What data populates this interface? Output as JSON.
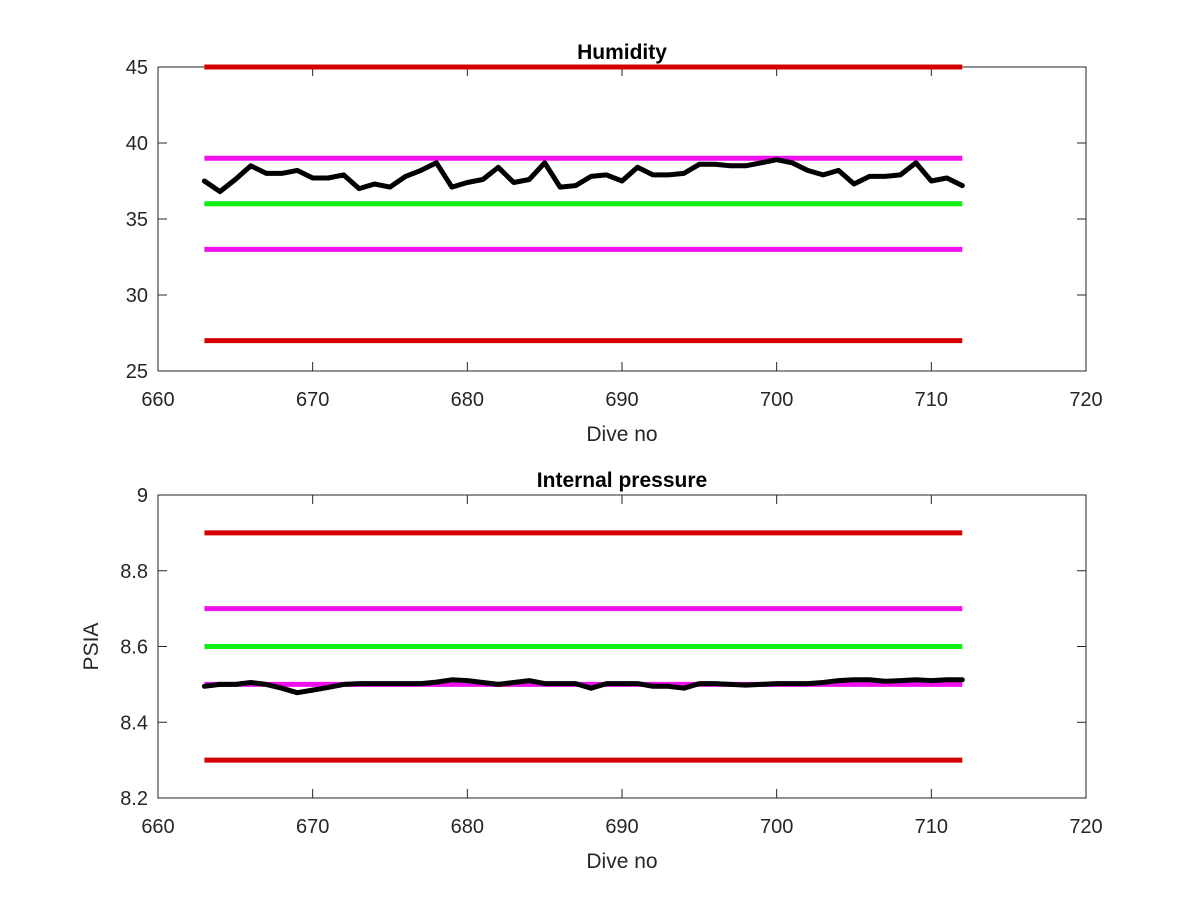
{
  "chart_data": [
    {
      "type": "line",
      "title": "Humidity",
      "xlabel": "Dive no",
      "ylabel": "",
      "xlim": [
        660,
        720
      ],
      "ylim": [
        25,
        45
      ],
      "xticks": [
        660,
        670,
        680,
        690,
        700,
        710,
        720
      ],
      "yticks": [
        25,
        30,
        35,
        40,
        45
      ],
      "xtick_labels": [
        "660",
        "670",
        "680",
        "690",
        "700",
        "710",
        "720"
      ],
      "ytick_labels": [
        "25",
        "30",
        "35",
        "40",
        "45"
      ],
      "grid": false,
      "legend": "none",
      "reference_lines": [
        {
          "y": 45,
          "x": [
            663,
            712
          ],
          "color": "#d40000"
        },
        {
          "y": 39,
          "x": [
            663,
            712
          ],
          "color": "#ee11ee"
        },
        {
          "y": 36,
          "x": [
            663,
            712
          ],
          "color": "#11ee11"
        },
        {
          "y": 33,
          "x": [
            663,
            712
          ],
          "color": "#ee11ee"
        },
        {
          "y": 27,
          "x": [
            663,
            712
          ],
          "color": "#d40000"
        }
      ],
      "series": [
        {
          "color": "#000000",
          "x": [
            663,
            664,
            665,
            666,
            667,
            668,
            669,
            670,
            671,
            672,
            673,
            674,
            675,
            676,
            677,
            678,
            679,
            680,
            681,
            682,
            683,
            684,
            685,
            686,
            687,
            688,
            689,
            690,
            691,
            692,
            693,
            694,
            695,
            696,
            697,
            698,
            699,
            700,
            701,
            702,
            703,
            704,
            705,
            706,
            707,
            708,
            709,
            710,
            711,
            712
          ],
          "y": [
            37.5,
            36.8,
            37.6,
            38.5,
            38.0,
            38.0,
            38.2,
            37.7,
            37.7,
            37.9,
            37.0,
            37.3,
            37.1,
            37.8,
            38.2,
            38.7,
            37.1,
            37.4,
            37.6,
            38.4,
            37.4,
            37.6,
            38.7,
            37.1,
            37.2,
            37.8,
            37.9,
            37.5,
            38.4,
            37.9,
            37.9,
            38.0,
            38.6,
            38.6,
            38.5,
            38.5,
            38.7,
            38.9,
            38.7,
            38.2,
            37.9,
            38.2,
            37.3,
            37.8,
            37.8,
            37.9,
            38.7,
            37.5,
            37.7,
            37.2
          ]
        }
      ]
    },
    {
      "type": "line",
      "title": "Internal pressure",
      "xlabel": "Dive no",
      "ylabel": "PSIA",
      "xlim": [
        660,
        720
      ],
      "ylim": [
        8.2,
        9
      ],
      "xticks": [
        660,
        670,
        680,
        690,
        700,
        710,
        720
      ],
      "yticks": [
        8.2,
        8.4,
        8.6,
        8.8,
        9
      ],
      "xtick_labels": [
        "660",
        "670",
        "680",
        "690",
        "700",
        "710",
        "720"
      ],
      "ytick_labels": [
        "8.2",
        "8.4",
        "8.6",
        "8.8",
        "9"
      ],
      "grid": false,
      "legend": "none",
      "reference_lines": [
        {
          "y": 8.9,
          "x": [
            663,
            712
          ],
          "color": "#d40000"
        },
        {
          "y": 8.7,
          "x": [
            663,
            712
          ],
          "color": "#ee11ee"
        },
        {
          "y": 8.6,
          "x": [
            663,
            712
          ],
          "color": "#11ee11"
        },
        {
          "y": 8.5,
          "x": [
            663,
            712
          ],
          "color": "#ee11ee"
        },
        {
          "y": 8.3,
          "x": [
            663,
            712
          ],
          "color": "#d40000"
        }
      ],
      "series": [
        {
          "color": "#000000",
          "x": [
            663,
            664,
            665,
            666,
            667,
            668,
            669,
            670,
            671,
            672,
            673,
            674,
            675,
            676,
            677,
            678,
            679,
            680,
            681,
            682,
            683,
            684,
            685,
            686,
            687,
            688,
            689,
            690,
            691,
            692,
            693,
            694,
            695,
            696,
            697,
            698,
            699,
            700,
            701,
            702,
            703,
            704,
            705,
            706,
            707,
            708,
            709,
            710,
            711,
            712
          ],
          "y": [
            8.495,
            8.5,
            8.5,
            8.505,
            8.5,
            8.49,
            8.478,
            8.485,
            8.492,
            8.5,
            8.502,
            8.502,
            8.502,
            8.502,
            8.502,
            8.506,
            8.512,
            8.51,
            8.505,
            8.5,
            8.505,
            8.51,
            8.502,
            8.502,
            8.502,
            8.49,
            8.502,
            8.502,
            8.502,
            8.495,
            8.495,
            8.49,
            8.502,
            8.502,
            8.5,
            8.498,
            8.5,
            8.502,
            8.502,
            8.502,
            8.505,
            8.51,
            8.512,
            8.512,
            8.508,
            8.51,
            8.512,
            8.51,
            8.512,
            8.512
          ]
        }
      ]
    }
  ]
}
